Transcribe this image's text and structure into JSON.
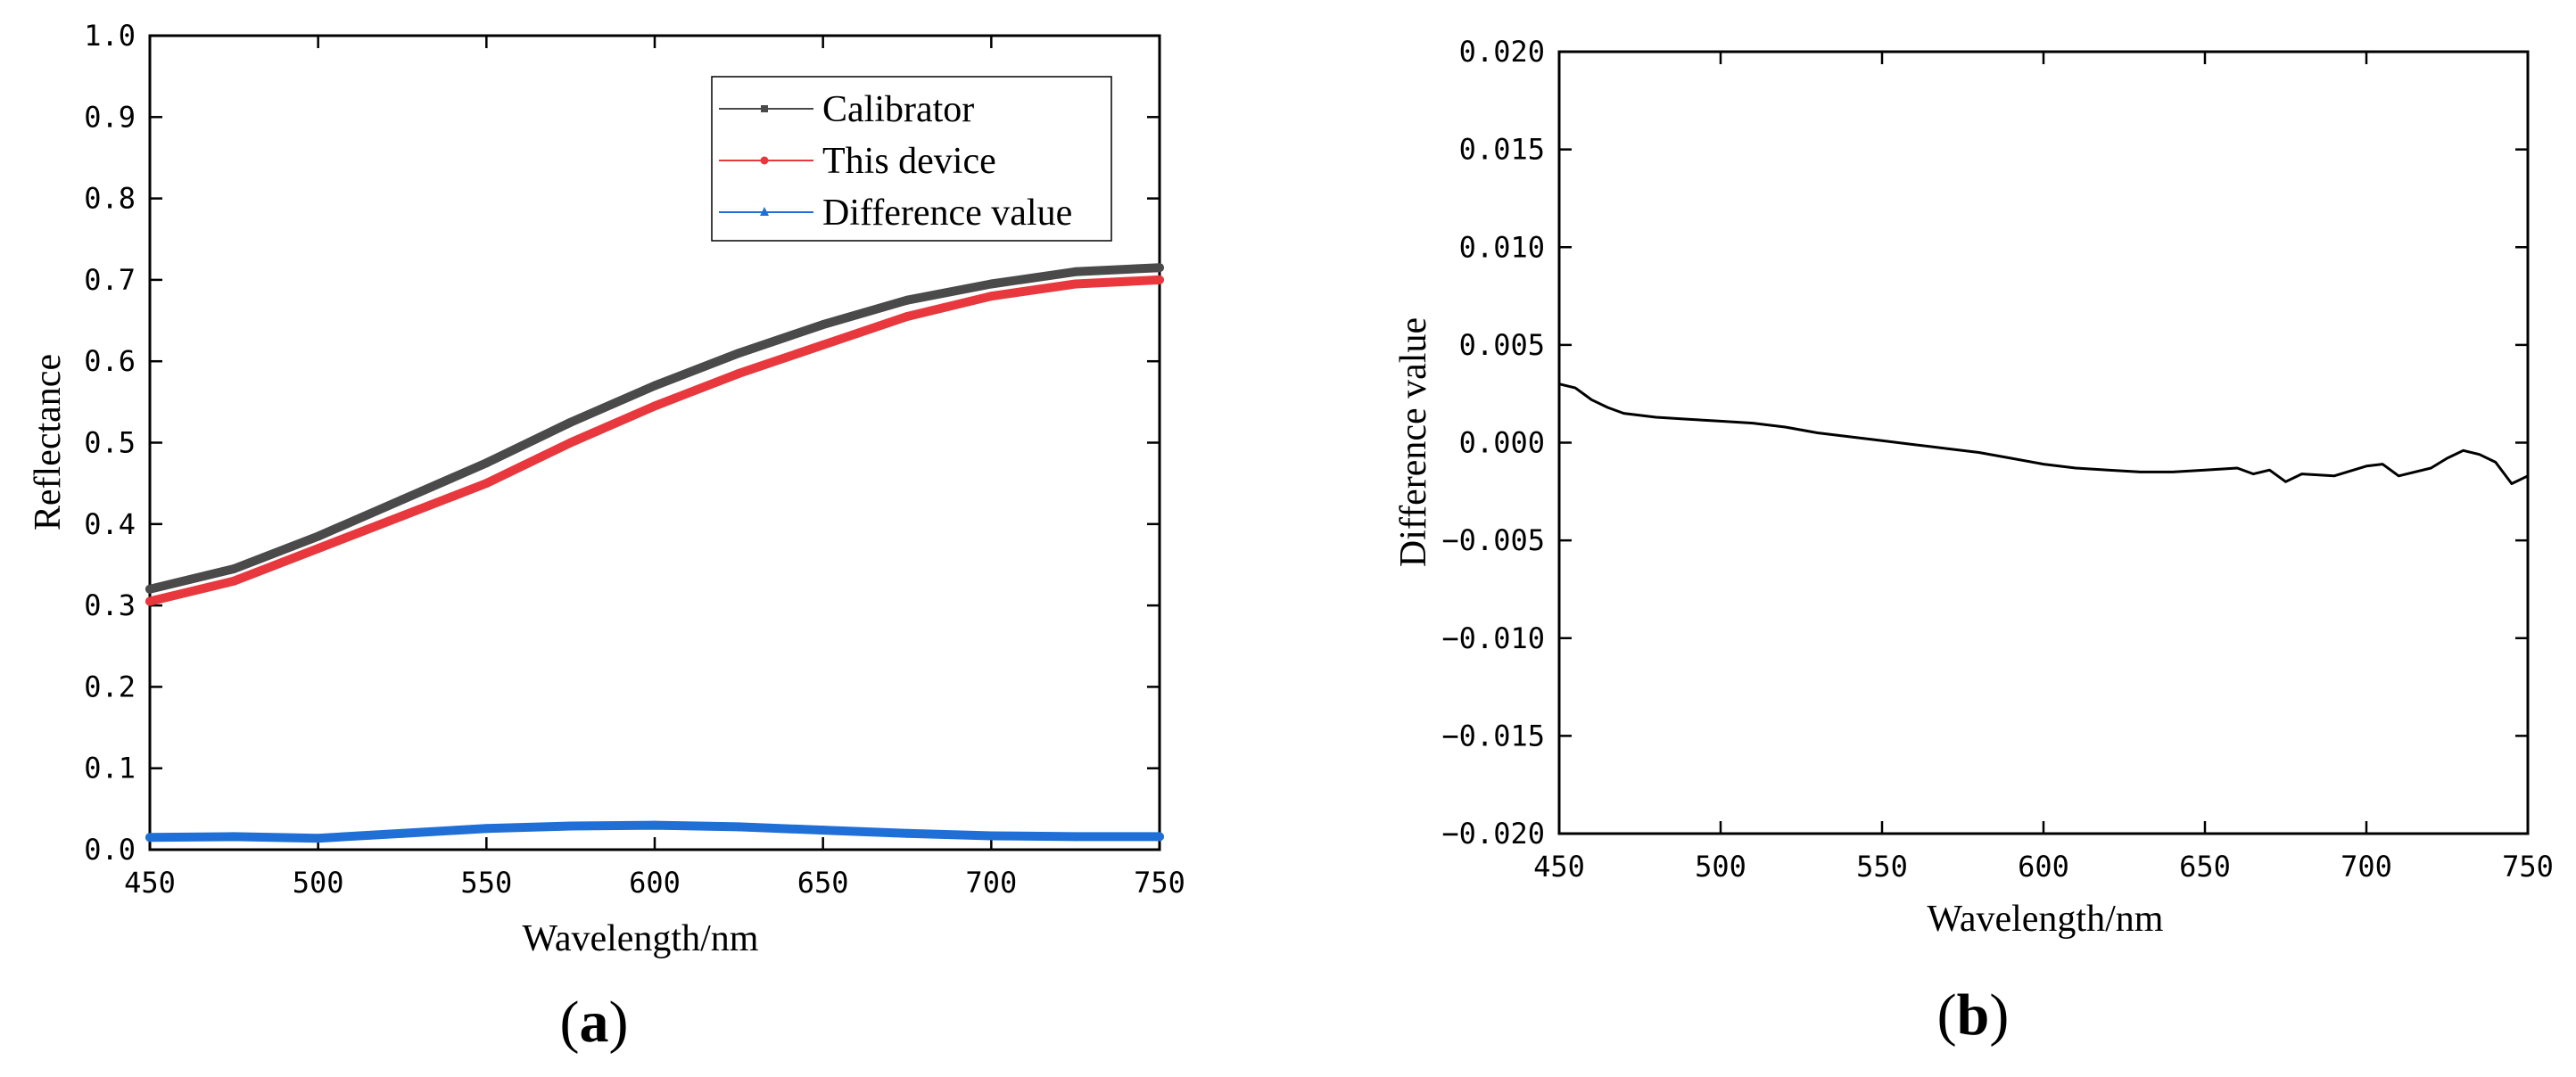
{
  "chart_data": [
    {
      "panel_label": "a",
      "type": "line",
      "xlabel": "Wavelength/nm",
      "ylabel": "Reflectance",
      "xlim": [
        450,
        750
      ],
      "ylim": [
        0.0,
        1.0
      ],
      "x_ticks": [
        "450",
        "500",
        "550",
        "600",
        "650",
        "700",
        "750"
      ],
      "y_ticks": [
        "0.0",
        "0.1",
        "0.2",
        "0.3",
        "0.4",
        "0.5",
        "0.6",
        "0.7",
        "0.8",
        "0.9",
        "1.0"
      ],
      "legend_position": "top-right",
      "series": [
        {
          "name": "Calibrator",
          "color": "#4a4a4a",
          "marker": "square",
          "x": [
            450,
            475,
            500,
            525,
            550,
            575,
            600,
            625,
            650,
            675,
            700,
            725,
            750
          ],
          "y": [
            0.32,
            0.345,
            0.385,
            0.43,
            0.475,
            0.525,
            0.57,
            0.61,
            0.645,
            0.675,
            0.695,
            0.71,
            0.715
          ]
        },
        {
          "name": "This device",
          "color": "#e8383d",
          "marker": "circle",
          "x": [
            450,
            475,
            500,
            525,
            550,
            575,
            600,
            625,
            650,
            675,
            700,
            725,
            750
          ],
          "y": [
            0.305,
            0.33,
            0.37,
            0.41,
            0.45,
            0.5,
            0.545,
            0.585,
            0.62,
            0.655,
            0.68,
            0.695,
            0.7
          ]
        },
        {
          "name": "Difference value",
          "color": "#1f6fd6",
          "marker": "triangle",
          "x": [
            450,
            475,
            500,
            525,
            550,
            575,
            600,
            625,
            650,
            675,
            700,
            725,
            750
          ],
          "y": [
            0.015,
            0.016,
            0.014,
            0.02,
            0.026,
            0.029,
            0.03,
            0.028,
            0.024,
            0.02,
            0.017,
            0.016,
            0.016
          ]
        }
      ]
    },
    {
      "panel_label": "b",
      "type": "line",
      "xlabel": "Wavelength/nm",
      "ylabel": "Difference value",
      "xlim": [
        450,
        750
      ],
      "ylim": [
        -0.02,
        0.02
      ],
      "x_ticks": [
        "450",
        "500",
        "550",
        "600",
        "650",
        "700",
        "750"
      ],
      "y_ticks": [
        "-0.020",
        "-0.015",
        "-0.010",
        "-0.005",
        "0.000",
        "0.005",
        "0.010",
        "0.015",
        "0.020"
      ],
      "series": [
        {
          "name": "Difference value",
          "color": "#000000",
          "x": [
            450,
            455,
            460,
            465,
            470,
            480,
            490,
            500,
            510,
            520,
            530,
            540,
            550,
            560,
            570,
            580,
            590,
            600,
            610,
            620,
            630,
            640,
            650,
            660,
            665,
            670,
            675,
            680,
            690,
            700,
            705,
            710,
            720,
            725,
            730,
            735,
            740,
            745,
            750
          ],
          "y": [
            0.003,
            0.0028,
            0.0022,
            0.0018,
            0.0015,
            0.0013,
            0.0012,
            0.0011,
            0.001,
            0.0008,
            0.0005,
            0.0003,
            0.0001,
            -0.0001,
            -0.0003,
            -0.0005,
            -0.0008,
            -0.0011,
            -0.0013,
            -0.0014,
            -0.0015,
            -0.0015,
            -0.0014,
            -0.0013,
            -0.0016,
            -0.0014,
            -0.002,
            -0.0016,
            -0.0017,
            -0.0012,
            -0.0011,
            -0.0017,
            -0.0013,
            -0.0008,
            -0.0004,
            -0.0006,
            -0.001,
            -0.0021,
            -0.0017
          ]
        }
      ]
    }
  ]
}
